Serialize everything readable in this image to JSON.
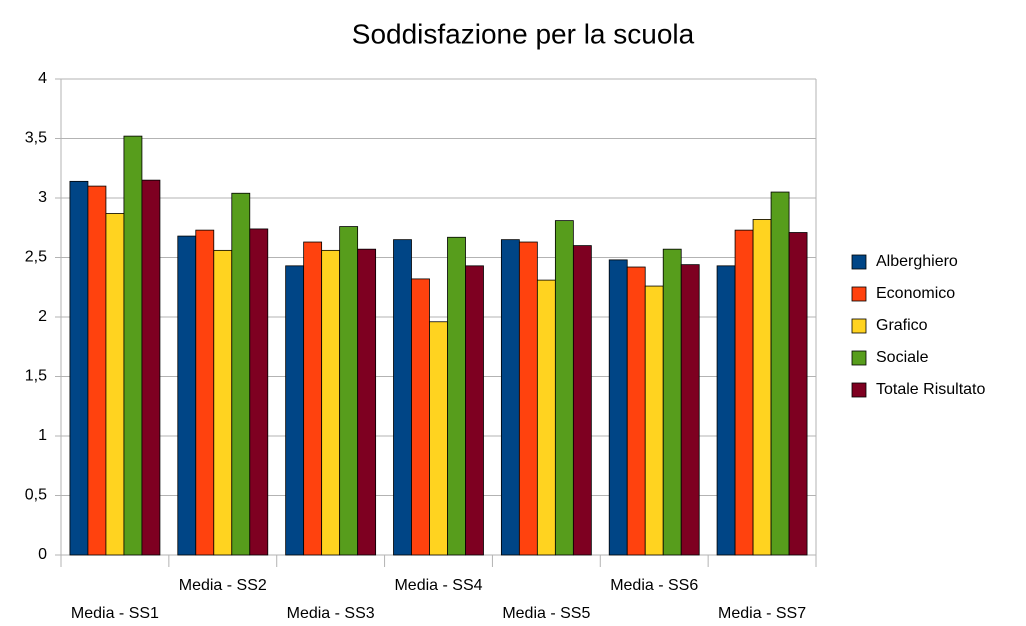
{
  "chart_data": {
    "type": "bar",
    "title": "Soddisfazione per la scuola",
    "categories": [
      "Media - SS1",
      "Media - SS2",
      "Media - SS3",
      "Media - SS4",
      "Media - SS5",
      "Media - SS6",
      "Media - SS7"
    ],
    "series": [
      {
        "name": "Alberghiero",
        "color": "#004586",
        "values": [
          3.14,
          2.68,
          2.43,
          2.65,
          2.65,
          2.48,
          2.43
        ]
      },
      {
        "name": "Economico",
        "color": "#ff420e",
        "values": [
          3.1,
          2.73,
          2.63,
          2.32,
          2.63,
          2.42,
          2.73
        ]
      },
      {
        "name": "Grafico",
        "color": "#ffd320",
        "values": [
          2.87,
          2.56,
          2.56,
          1.96,
          2.31,
          2.26,
          2.82
        ]
      },
      {
        "name": "Sociale",
        "color": "#579d1c",
        "values": [
          3.52,
          3.04,
          2.76,
          2.67,
          2.81,
          2.57,
          3.05
        ]
      },
      {
        "name": "Totale Risultato",
        "color": "#7e0021",
        "values": [
          3.15,
          2.74,
          2.57,
          2.43,
          2.6,
          2.44,
          2.71
        ]
      }
    ],
    "ylim": [
      0,
      4
    ],
    "yticks": [
      0,
      {
        "value": 0.5,
        "label": "0,5"
      },
      1,
      {
        "value": 1.5,
        "label": "1,5"
      },
      2,
      {
        "value": 2.5,
        "label": "2,5"
      },
      3,
      {
        "value": 3.5,
        "label": "3,5"
      },
      4
    ],
    "grid": true,
    "legend": "right"
  }
}
